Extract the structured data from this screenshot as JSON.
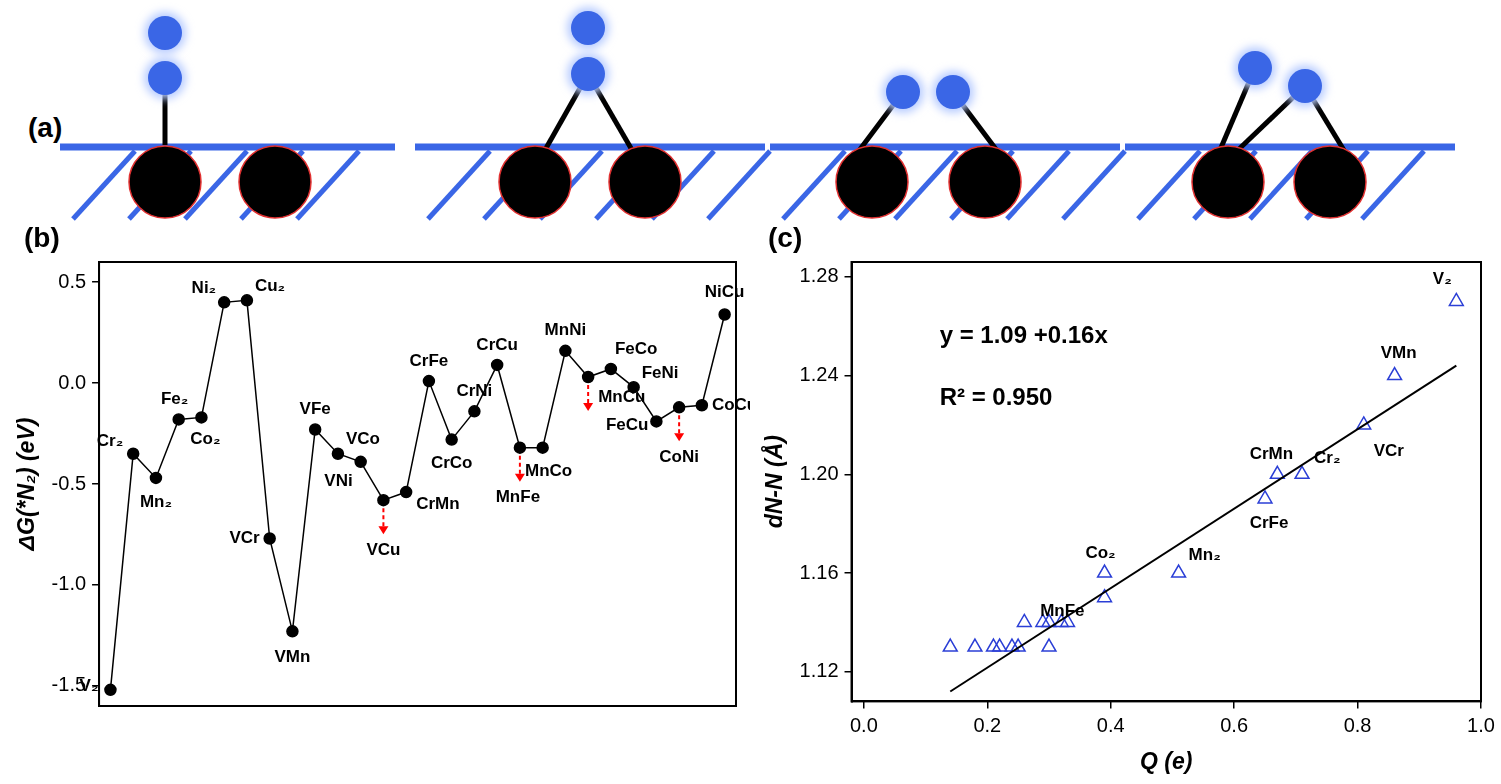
{
  "diagram": {
    "label": "(a)"
  },
  "chart_data": [
    {
      "type": "line",
      "title": "(b)",
      "y_label": "ΔG(*N₂) (eV)",
      "categories": [
        "V₂",
        "Cr₂",
        "Mn₂",
        "Fe₂",
        "Co₂",
        "Ni₂",
        "Cu₂",
        "VCr",
        "VMn",
        "VFe",
        "VCo",
        "VNi",
        "VCu",
        "CrMn",
        "CrFe",
        "CrCo",
        "CrNi",
        "CrCu",
        "MnFe",
        "MnCo",
        "MnNi",
        "MnCu",
        "FeCo",
        "FeNi",
        "FeCu",
        "CoNi",
        "CoCu",
        "NiCu"
      ],
      "values": [
        -1.52,
        -0.35,
        -0.47,
        -0.18,
        -0.17,
        0.4,
        0.41,
        -0.77,
        -1.23,
        -0.23,
        -0.35,
        -0.39,
        -0.58,
        -0.54,
        0.01,
        -0.28,
        -0.14,
        0.09,
        -0.32,
        -0.32,
        0.16,
        0.03,
        0.07,
        -0.02,
        -0.19,
        -0.12,
        -0.11,
        0.34
      ],
      "color": "#000000",
      "marker": "circle",
      "ylim": [
        -1.6,
        0.6
      ],
      "yticks": [
        -1.5,
        {
          "value": -1,
          "label": "-1.0"
        },
        -0.5,
        {
          "value": 0,
          "label": "0.0"
        },
        0.5
      ],
      "grid": false,
      "tick_labels": "y",
      "arrows": {
        "at": [
          "VCu",
          "MnFe",
          "MnCu",
          "CoNi"
        ],
        "color": "#ff0000",
        "line_style": "dashed"
      }
    },
    {
      "type": "scatter",
      "title": "(c)",
      "x_label": "Q (e)",
      "y_label": "dN-N (Å)",
      "x": [
        0.14,
        0.18,
        0.21,
        0.22,
        0.24,
        0.25,
        0.26,
        0.29,
        0.3,
        0.3,
        0.32,
        0.33,
        0.39,
        0.39,
        0.51,
        0.65,
        0.67,
        0.71,
        0.81,
        0.86,
        0.96
      ],
      "values": [
        1.13,
        1.13,
        1.13,
        1.13,
        1.13,
        1.13,
        1.14,
        1.14,
        1.14,
        1.13,
        1.14,
        1.14,
        1.16,
        1.15,
        1.16,
        1.19,
        1.2,
        1.2,
        1.22,
        1.24,
        1.27
      ],
      "labels": [
        null,
        null,
        null,
        null,
        null,
        null,
        null,
        null,
        null,
        null,
        null,
        null,
        "Co₂",
        "MnFe",
        "Mn₂",
        "CrFe",
        "CrMn",
        "Cr₂",
        "VCr",
        "VMn",
        "V₂"
      ],
      "color": "#2b3fd6",
      "marker": "triangle",
      "fit": {
        "x": [
          0.14,
          0.96
        ],
        "values": [
          1.112,
          1.244
        ],
        "color": "#000000",
        "line_style": "solid"
      },
      "annotations": [
        "y = 1.09 +0.16x",
        "R² = 0.950"
      ],
      "xlim": [
        -0.02,
        1.0
      ],
      "xticks": [
        {
          "value": 0,
          "label": "0.0"
        },
        0.2,
        0.4,
        0.6,
        0.8,
        {
          "value": 1,
          "label": "1.0"
        }
      ],
      "ylim": [
        1.108,
        1.286
      ],
      "yticks": [
        1.12,
        1.16,
        {
          "value": 1.2,
          "label": "1.20"
        },
        1.24,
        1.28
      ],
      "grid": false
    }
  ]
}
